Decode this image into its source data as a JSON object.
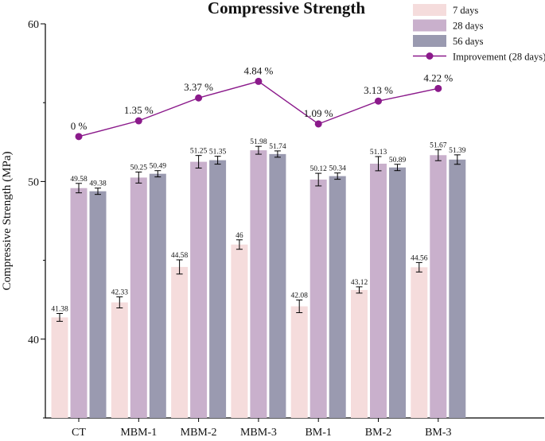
{
  "chart_data": {
    "type": "bar",
    "title": "Compressive Strength",
    "xlabel": "",
    "ylabel": "Compressive Strength (MPa)",
    "ylim": [
      35,
      60
    ],
    "yticks": [
      40,
      50,
      60
    ],
    "categories": [
      "CT",
      "MBM-1",
      "MBM-2",
      "MBM-3",
      "BM-1",
      "BM-2",
      "BM-3"
    ],
    "series": [
      {
        "name": "7 days",
        "color": "#f5dcdc",
        "values": [
          41.38,
          42.33,
          44.58,
          46,
          42.08,
          43.12,
          44.56
        ],
        "value_labels": [
          "41.38",
          "42.33",
          "44.58",
          "46",
          "42.08",
          "43.12",
          "44.56"
        ],
        "errors": [
          0.25,
          0.35,
          0.45,
          0.3,
          0.4,
          0.2,
          0.3
        ]
      },
      {
        "name": "28 days",
        "color": "#c9b0cc",
        "values": [
          49.58,
          50.25,
          51.25,
          51.98,
          50.12,
          51.13,
          51.67
        ],
        "value_labels": [
          "49.58",
          "50.25",
          "51.25",
          "51.98",
          "50.12",
          "51.13",
          "51.67"
        ],
        "errors": [
          0.3,
          0.35,
          0.4,
          0.25,
          0.4,
          0.45,
          0.35
        ]
      },
      {
        "name": "56 days",
        "color": "#9a9ab0",
        "values": [
          49.38,
          50.49,
          51.35,
          51.74,
          50.34,
          50.89,
          51.39
        ],
        "value_labels": [
          "49.38",
          "50.49",
          "51.35",
          "51.74",
          "50.34",
          "50.89",
          "51.39"
        ],
        "errors": [
          0.2,
          0.2,
          0.25,
          0.2,
          0.2,
          0.2,
          0.3
        ]
      }
    ],
    "line_series": {
      "name": "Improvement (28 days)",
      "color": "#8b1a8b",
      "values": [
        0,
        1.35,
        3.37,
        4.84,
        1.09,
        3.13,
        4.22
      ],
      "labels": [
        "0 %",
        "1.35 %",
        "3.37 %",
        "4.84 %",
        "1.09 %",
        "3.13 %",
        "4.22 %"
      ],
      "plot_y": [
        52.85,
        53.85,
        55.3,
        56.35,
        53.65,
        55.1,
        55.9
      ]
    },
    "legend_position": "top-right"
  }
}
